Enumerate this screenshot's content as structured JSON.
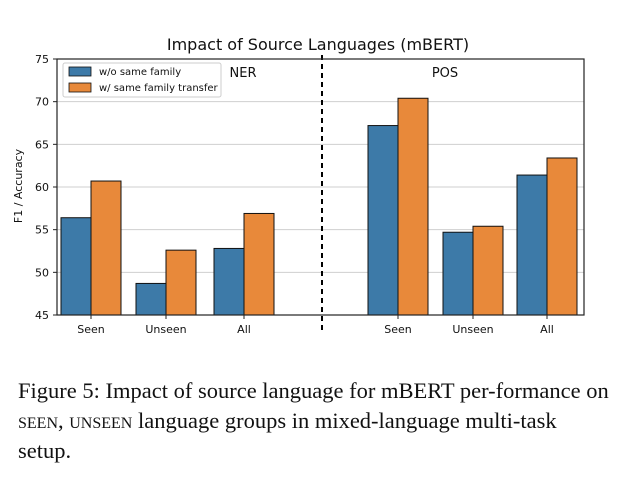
{
  "chart_data": {
    "type": "bar",
    "title": "Impact of Source Languages (mBERT)",
    "ylabel": "F1 / Accuracy",
    "xlabel": "",
    "ylim": [
      45,
      75
    ],
    "yticks": [
      45,
      50,
      55,
      60,
      65,
      70,
      75
    ],
    "grid": true,
    "legend_position": "top-left",
    "series": [
      {
        "name": "w/o same family",
        "color": "#3d7aa8"
      },
      {
        "name": "w/ same family transfer",
        "color": "#e8893a"
      }
    ],
    "panels": [
      {
        "label": "NER",
        "categories": [
          "Seen",
          "Unseen",
          "All"
        ],
        "values": [
          [
            56.4,
            60.7
          ],
          [
            48.7,
            52.6
          ],
          [
            52.8,
            56.9
          ]
        ]
      },
      {
        "label": "POS",
        "categories": [
          "Seen",
          "Unseen",
          "All"
        ],
        "values": [
          [
            67.2,
            70.4
          ],
          [
            54.7,
            55.4
          ],
          [
            61.4,
            63.4
          ]
        ]
      }
    ]
  },
  "caption": {
    "prefix": "Figure 5: Impact of source language for mBERT per-formance on ",
    "seen": "seen",
    "sep": ", ",
    "unseen": "unseen",
    "suffix": " language groups in mixed-language multi-task setup."
  }
}
